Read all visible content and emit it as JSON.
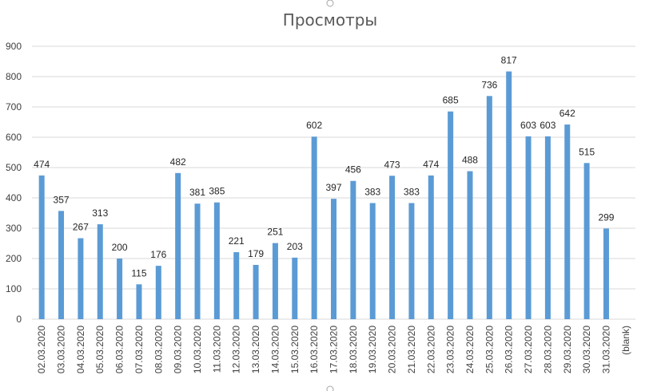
{
  "chart_data": {
    "type": "bar",
    "title": "Просмотры",
    "xlabel": "",
    "ylabel": "",
    "ylim": [
      0,
      900
    ],
    "yticks": [
      0,
      100,
      200,
      300,
      400,
      500,
      600,
      700,
      800,
      900
    ],
    "grid": true,
    "legend": "none",
    "bar_color": "#5b9bd5",
    "categories": [
      "02.03.2020",
      "03.03.2020",
      "04.03.2020",
      "05.03.2020",
      "06.03.2020",
      "07.03.2020",
      "08.03.2020",
      "09.03.2020",
      "10.03.2020",
      "11.03.2020",
      "12.03.2020",
      "13.03.2020",
      "14.03.2020",
      "15.03.2020",
      "16.03.2020",
      "17.03.2020",
      "18.03.2020",
      "19.03.2020",
      "20.03.2020",
      "21.03.2020",
      "22.03.2020",
      "23.03.2020",
      "24.03.2020",
      "25.03.2020",
      "26.03.2020",
      "27.03.2020",
      "28.03.2020",
      "29.03.2020",
      "30.03.2020",
      "31.03.2020",
      "(blank)"
    ],
    "values": [
      474,
      357,
      267,
      313,
      200,
      115,
      176,
      482,
      381,
      385,
      221,
      179,
      251,
      203,
      602,
      397,
      456,
      383,
      473,
      383,
      474,
      685,
      488,
      736,
      817,
      603,
      603,
      642,
      515,
      299,
      null
    ]
  }
}
